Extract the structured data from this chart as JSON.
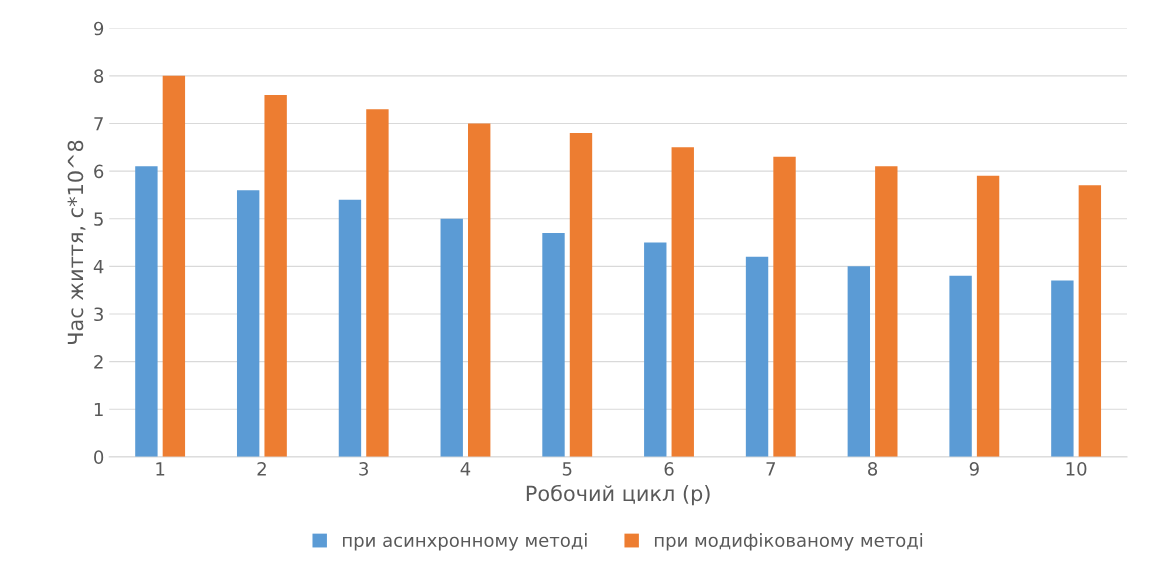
{
  "chart_data": {
    "type": "bar",
    "xlabel": "Робочий цикл (р)",
    "ylabel": "Час життя, с*10^8",
    "categories": [
      "1",
      "2",
      "3",
      "4",
      "5",
      "6",
      "7",
      "8",
      "9",
      "10"
    ],
    "series": [
      {
        "name": "при асинхронному методі",
        "color": "#5b9bd5",
        "values": [
          6.1,
          5.6,
          5.4,
          5.0,
          4.7,
          4.5,
          4.2,
          4.0,
          3.8,
          3.7
        ]
      },
      {
        "name": "при модифікованому методі",
        "color": "#ed7d31",
        "values": [
          8.0,
          7.6,
          7.3,
          7.0,
          6.8,
          6.5,
          6.3,
          6.1,
          5.9,
          5.7
        ]
      }
    ],
    "ylim": [
      0,
      9
    ],
    "yticks": [
      0,
      1,
      2,
      3,
      4,
      5,
      6,
      7,
      8,
      9
    ],
    "grid": "y",
    "legend": "bottom"
  }
}
